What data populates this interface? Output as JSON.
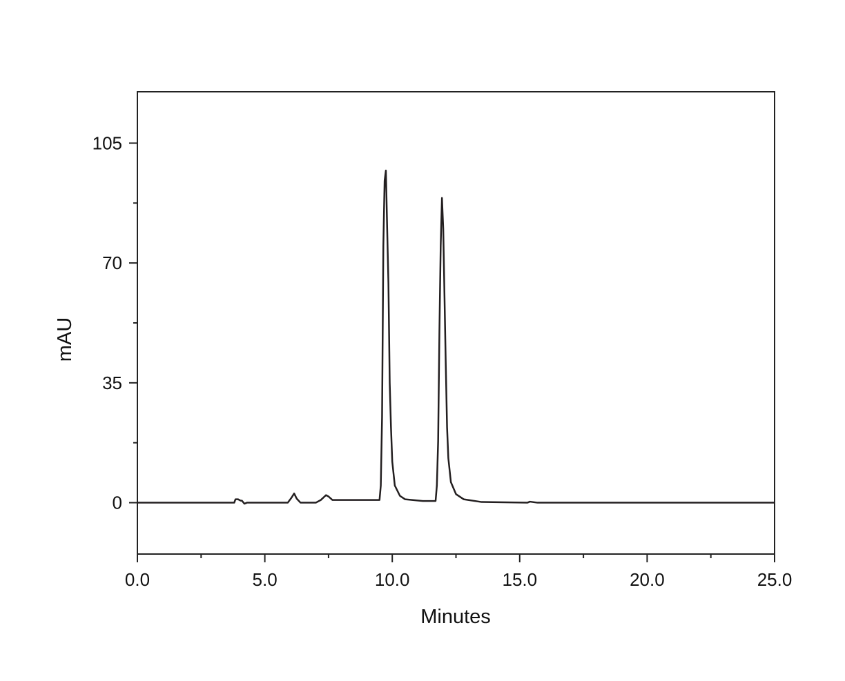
{
  "chart_data": {
    "type": "line",
    "xlabel": "Minutes",
    "ylabel": "mAU",
    "x": [
      0,
      3.8,
      3.85,
      3.95,
      4.05,
      4.1,
      4.2,
      4.3,
      5.9,
      6.05,
      6.15,
      6.25,
      6.4,
      7.0,
      7.2,
      7.4,
      7.5,
      7.65,
      9.5,
      9.55,
      9.6,
      9.65,
      9.7,
      9.75,
      9.8,
      9.85,
      9.9,
      9.95,
      10.0,
      10.1,
      10.3,
      10.5,
      11.2,
      11.7,
      11.75,
      11.8,
      11.85,
      11.9,
      11.95,
      12.0,
      12.05,
      12.1,
      12.15,
      12.2,
      12.3,
      12.5,
      12.8,
      13.5,
      15.3,
      15.4,
      15.7,
      25
    ],
    "series": [
      {
        "color": "#231f20",
        "values": [
          0,
          0,
          1,
          1,
          0.6,
          0.6,
          -0.3,
          0,
          0,
          1.5,
          2.7,
          1.2,
          0,
          0,
          0.8,
          2.2,
          1.8,
          0.8,
          0.8,
          5,
          25,
          75,
          94,
          97,
          80,
          64,
          35,
          22,
          12,
          5,
          2,
          1,
          0.5,
          0.5,
          5,
          18,
          50,
          75,
          89,
          80,
          60,
          40,
          22,
          13,
          6,
          2.5,
          1,
          0.2,
          0,
          0.3,
          0,
          0
        ]
      }
    ],
    "xlim": [
      0,
      25
    ],
    "xticks": [
      {
        "value": 0,
        "label": "0.0"
      },
      {
        "value": 5,
        "label": "5.0"
      },
      {
        "value": 10,
        "label": "10.0"
      },
      {
        "value": 15,
        "label": "15.0"
      },
      {
        "value": 20,
        "label": "20.0"
      },
      {
        "value": 25,
        "label": "25.0"
      }
    ],
    "minor_xticks": [
      2.5,
      7.5,
      12.5,
      17.5,
      22.5
    ],
    "ylim": [
      -15,
      120
    ],
    "yticks": [
      0,
      35,
      70,
      105
    ],
    "minor_yticks": [
      17.5,
      52.5,
      87.5
    ]
  }
}
